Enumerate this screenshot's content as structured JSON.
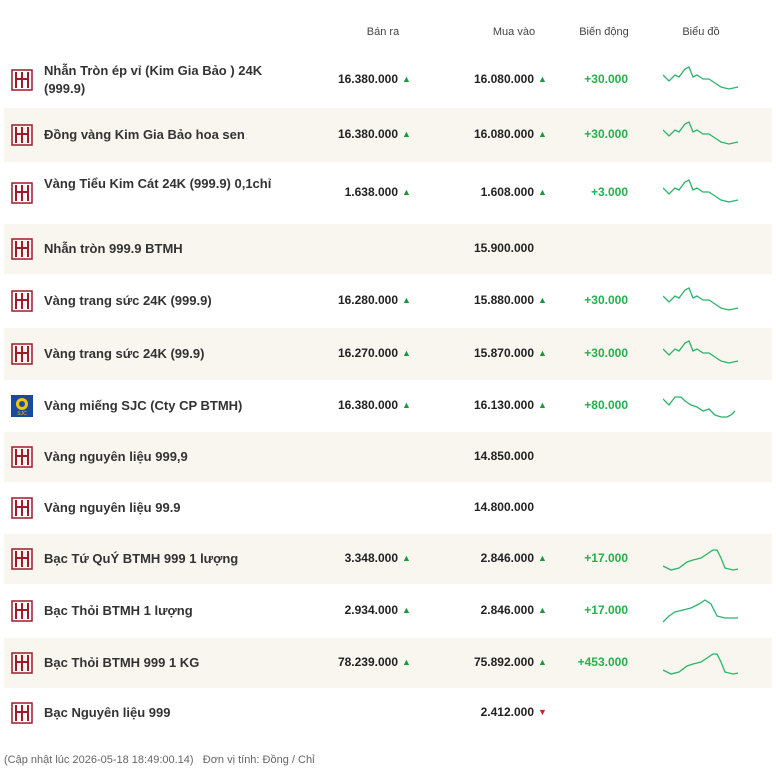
{
  "header": {
    "sell": "Bán ra",
    "buy": "Mua vào",
    "change": "Biến động",
    "chart": "Biểu đồ"
  },
  "rows": [
    {
      "name": "Nhẫn Tròn ép vỉ (Kim Gia Bảo ) 24K (999.9)",
      "sell": "16.380.000",
      "sell_arrow": "▲",
      "buy": "16.080.000",
      "buy_arrow": "▲",
      "change": "+30.000"
    },
    {
      "name": "Đồng vàng Kim Gia Bảo hoa sen",
      "sell": "16.380.000",
      "sell_arrow": "▲",
      "buy": "16.080.000",
      "buy_arrow": "▲",
      "change": "+30.000"
    },
    {
      "name": "Vàng Tiểu Kim Cát 24K (999.9) 0,1chỉ",
      "sell": "1.638.000",
      "sell_arrow": "▲",
      "buy": "1.608.000",
      "buy_arrow": "▲",
      "change": "+3.000"
    },
    {
      "name": "Nhẫn tròn 999.9 BTMH",
      "buy": "15.900.000"
    },
    {
      "name": "Vàng trang sức 24K (999.9)",
      "sell": "16.280.000",
      "sell_arrow": "▲",
      "buy": "15.880.000",
      "buy_arrow": "▲",
      "change": "+30.000"
    },
    {
      "name": "Vàng trang sức 24K (99.9)",
      "sell": "16.270.000",
      "sell_arrow": "▲",
      "buy": "15.870.000",
      "buy_arrow": "▲",
      "change": "+30.000"
    },
    {
      "name": "Vàng miếng SJC (Cty CP BTMH)",
      "sell": "16.380.000",
      "sell_arrow": "▲",
      "buy": "16.130.000",
      "buy_arrow": "▲",
      "change": "+80.000"
    },
    {
      "name": "Vàng nguyên liệu 999,9",
      "buy": "14.850.000"
    },
    {
      "name": "Vàng nguyên liệu 99.9",
      "buy": "14.800.000"
    },
    {
      "name": "Bạc Tứ QuÝ BTMH 999 1 lượng",
      "sell": "3.348.000",
      "sell_arrow": "▲",
      "buy": "2.846.000",
      "buy_arrow": "▲",
      "change": "+17.000"
    },
    {
      "name": "Bạc Thỏi BTMH 1 lượng",
      "sell": "2.934.000",
      "sell_arrow": "▲",
      "buy": "2.846.000",
      "buy_arrow": "▲",
      "change": "+17.000"
    },
    {
      "name": "Bạc Thỏi BTMH 999 1 KG",
      "sell": "78.239.000",
      "sell_arrow": "▲",
      "buy": "75.892.000",
      "buy_arrow": "▲",
      "change": "+453.000"
    },
    {
      "name": "Bạc Nguyên liệu 999",
      "buy": "2.412.000",
      "buy_arrow": "▼"
    }
  ],
  "footer": {
    "updated": "(Cập nhật lúc 2026-05-18 18:49:00.14)",
    "unit": "Đơn vị tính: Đồng / Chỉ"
  }
}
